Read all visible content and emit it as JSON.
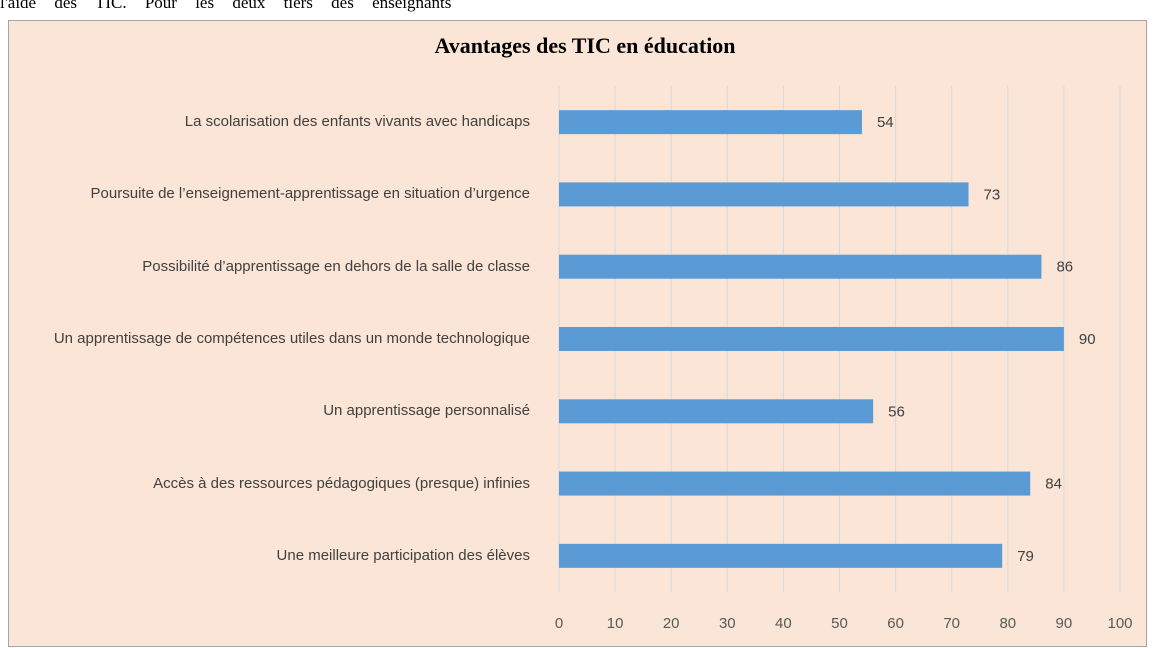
{
  "document_text": "l'aide des TIC. Pour les deux tiers des enseignants",
  "chart_data": {
    "type": "bar",
    "orientation": "horizontal",
    "title": "Avantages des TIC en éducation",
    "categories": [
      "La scolarisation des enfants vivants avec handicaps",
      "Poursuite de l’enseignement-apprentissage en situation d’urgence",
      "Possibilité d’apprentissage en dehors de la salle de classe",
      "Un apprentissage de compétences utiles dans un monde technologique",
      "Un apprentissage personnalisé",
      "Accès à des ressources pédagogiques (presque) infinies",
      "Une meilleure participation des élèves"
    ],
    "values": [
      54,
      73,
      86,
      90,
      56,
      84,
      79
    ],
    "color": "#5b9bd5",
    "xlim": [
      0,
      100
    ],
    "xticks": [
      0,
      10,
      20,
      30,
      40,
      50,
      60,
      70,
      80,
      90,
      100
    ],
    "grid": true
  }
}
